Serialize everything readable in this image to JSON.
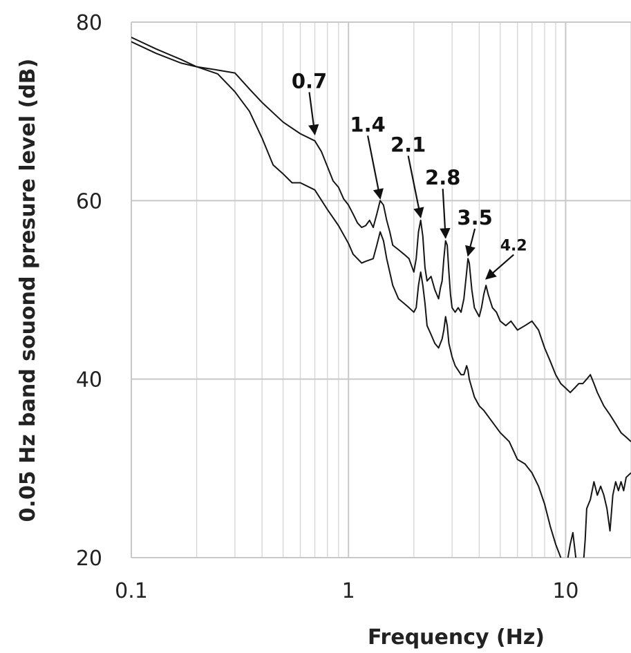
{
  "chart_data": {
    "type": "line",
    "xscale": "log",
    "xlabel": "Frequency (Hz)",
    "ylabel": "0.05 Hz band souond presure level (dB)",
    "xlim": [
      0.1,
      20
    ],
    "ylim": [
      20,
      80
    ],
    "x_ticks": [
      {
        "value": 0.1,
        "label": "0.1"
      },
      {
        "value": 1,
        "label": "1"
      },
      {
        "value": 10,
        "label": "10"
      }
    ],
    "y_ticks": [
      {
        "value": 20,
        "label": "20"
      },
      {
        "value": 40,
        "label": "40"
      },
      {
        "value": 60,
        "label": "60"
      },
      {
        "value": 80,
        "label": "80"
      }
    ],
    "grid": true,
    "legend": "none",
    "series": [
      {
        "points": [
          [
            0.1,
            78.3
          ],
          [
            0.13,
            77.0
          ],
          [
            0.17,
            75.8
          ],
          [
            0.2,
            75.0
          ],
          [
            0.24,
            74.7
          ],
          [
            0.3,
            74.3
          ],
          [
            0.35,
            72.5
          ],
          [
            0.4,
            71.0
          ],
          [
            0.5,
            68.8
          ],
          [
            0.6,
            67.5
          ],
          [
            0.7,
            66.7
          ],
          [
            0.75,
            65.5
          ],
          [
            0.8,
            63.8
          ],
          [
            0.85,
            62.2
          ],
          [
            0.9,
            61.5
          ],
          [
            0.95,
            60.2
          ],
          [
            1.0,
            59.5
          ],
          [
            1.05,
            58.5
          ],
          [
            1.1,
            57.5
          ],
          [
            1.15,
            57.0
          ],
          [
            1.2,
            57.2
          ],
          [
            1.25,
            57.8
          ],
          [
            1.3,
            57.0
          ],
          [
            1.35,
            58.5
          ],
          [
            1.4,
            60.0
          ],
          [
            1.45,
            59.5
          ],
          [
            1.5,
            57.8
          ],
          [
            1.55,
            56.5
          ],
          [
            1.6,
            55.0
          ],
          [
            1.7,
            54.5
          ],
          [
            1.8,
            54.0
          ],
          [
            1.9,
            53.5
          ],
          [
            2.0,
            52.0
          ],
          [
            2.05,
            53.5
          ],
          [
            2.1,
            56.5
          ],
          [
            2.15,
            57.8
          ],
          [
            2.2,
            56.0
          ],
          [
            2.25,
            52.5
          ],
          [
            2.3,
            51.0
          ],
          [
            2.4,
            51.5
          ],
          [
            2.5,
            50.0
          ],
          [
            2.6,
            49.0
          ],
          [
            2.65,
            50.2
          ],
          [
            2.7,
            51.0
          ],
          [
            2.75,
            53.5
          ],
          [
            2.8,
            55.5
          ],
          [
            2.85,
            55.0
          ],
          [
            2.9,
            52.0
          ],
          [
            2.95,
            49.5
          ],
          [
            3.0,
            48.0
          ],
          [
            3.1,
            47.5
          ],
          [
            3.2,
            48.0
          ],
          [
            3.3,
            47.5
          ],
          [
            3.4,
            49.0
          ],
          [
            3.5,
            52.0
          ],
          [
            3.55,
            53.5
          ],
          [
            3.6,
            53.0
          ],
          [
            3.7,
            50.0
          ],
          [
            3.8,
            48.0
          ],
          [
            3.9,
            47.5
          ],
          [
            4.0,
            47.0
          ],
          [
            4.1,
            48.0
          ],
          [
            4.2,
            49.5
          ],
          [
            4.3,
            50.5
          ],
          [
            4.4,
            49.5
          ],
          [
            4.6,
            48.0
          ],
          [
            4.8,
            47.5
          ],
          [
            5.0,
            46.5
          ],
          [
            5.3,
            46.0
          ],
          [
            5.6,
            46.5
          ],
          [
            6.0,
            45.5
          ],
          [
            6.5,
            46.0
          ],
          [
            7.0,
            46.5
          ],
          [
            7.5,
            45.5
          ],
          [
            8.0,
            43.5
          ],
          [
            8.5,
            42.0
          ],
          [
            9.0,
            40.5
          ],
          [
            9.5,
            39.5
          ],
          [
            10.0,
            39.0
          ],
          [
            10.5,
            38.5
          ],
          [
            11.0,
            39.0
          ],
          [
            11.5,
            39.5
          ],
          [
            12.0,
            39.5
          ],
          [
            12.5,
            40.0
          ],
          [
            13.0,
            40.5
          ],
          [
            13.5,
            39.5
          ],
          [
            14.0,
            38.5
          ],
          [
            15.0,
            37.0
          ],
          [
            16.0,
            36.0
          ],
          [
            17.0,
            35.0
          ],
          [
            18.0,
            34.0
          ],
          [
            19.0,
            33.5
          ],
          [
            20.0,
            33.0
          ]
        ]
      },
      {
        "points": [
          [
            0.1,
            77.8
          ],
          [
            0.13,
            76.5
          ],
          [
            0.17,
            75.4
          ],
          [
            0.2,
            75.0
          ],
          [
            0.25,
            74.2
          ],
          [
            0.3,
            72.2
          ],
          [
            0.35,
            70.0
          ],
          [
            0.4,
            67.0
          ],
          [
            0.45,
            64.0
          ],
          [
            0.5,
            63.0
          ],
          [
            0.55,
            62.0
          ],
          [
            0.6,
            62.0
          ],
          [
            0.7,
            61.2
          ],
          [
            0.8,
            59.0
          ],
          [
            0.9,
            57.2
          ],
          [
            1.0,
            55.2
          ],
          [
            1.05,
            54.0
          ],
          [
            1.1,
            53.5
          ],
          [
            1.15,
            53.0
          ],
          [
            1.2,
            53.2
          ],
          [
            1.3,
            53.5
          ],
          [
            1.35,
            55.0
          ],
          [
            1.4,
            56.5
          ],
          [
            1.45,
            55.5
          ],
          [
            1.5,
            53.5
          ],
          [
            1.6,
            50.5
          ],
          [
            1.7,
            49.0
          ],
          [
            1.8,
            48.5
          ],
          [
            1.9,
            48.0
          ],
          [
            2.0,
            47.5
          ],
          [
            2.05,
            48.0
          ],
          [
            2.1,
            50.5
          ],
          [
            2.15,
            52.0
          ],
          [
            2.2,
            50.5
          ],
          [
            2.25,
            48.5
          ],
          [
            2.3,
            46.0
          ],
          [
            2.4,
            45.0
          ],
          [
            2.5,
            44.0
          ],
          [
            2.6,
            43.5
          ],
          [
            2.7,
            44.5
          ],
          [
            2.75,
            45.5
          ],
          [
            2.8,
            47.0
          ],
          [
            2.85,
            46.0
          ],
          [
            2.9,
            44.0
          ],
          [
            3.0,
            42.5
          ],
          [
            3.1,
            41.5
          ],
          [
            3.2,
            41.0
          ],
          [
            3.3,
            40.5
          ],
          [
            3.4,
            40.5
          ],
          [
            3.5,
            41.5
          ],
          [
            3.55,
            41.0
          ],
          [
            3.6,
            40.0
          ],
          [
            3.7,
            39.0
          ],
          [
            3.8,
            38.0
          ],
          [
            4.0,
            37.0
          ],
          [
            4.2,
            36.5
          ],
          [
            4.5,
            35.5
          ],
          [
            5.0,
            34.0
          ],
          [
            5.5,
            33.0
          ],
          [
            6.0,
            31.0
          ],
          [
            6.5,
            30.5
          ],
          [
            7.0,
            29.5
          ],
          [
            7.5,
            28.0
          ],
          [
            8.0,
            26.0
          ],
          [
            8.5,
            23.5
          ],
          [
            9.0,
            21.5
          ],
          [
            9.5,
            20.0
          ],
          [
            10.0,
            18.5
          ],
          [
            10.5,
            21.5
          ],
          [
            10.8,
            22.8
          ],
          [
            11.2,
            19.5
          ],
          [
            11.5,
            17.0
          ],
          [
            12.0,
            18.5
          ],
          [
            12.3,
            22.0
          ],
          [
            12.5,
            25.5
          ],
          [
            13.0,
            26.5
          ],
          [
            13.5,
            28.5
          ],
          [
            14.0,
            27.0
          ],
          [
            14.5,
            28.0
          ],
          [
            15.0,
            27.0
          ],
          [
            15.5,
            25.5
          ],
          [
            16.0,
            23.0
          ],
          [
            16.5,
            27.0
          ],
          [
            17.0,
            28.5
          ],
          [
            17.5,
            27.5
          ],
          [
            18.0,
            28.5
          ],
          [
            18.5,
            27.5
          ],
          [
            19.0,
            29.0
          ],
          [
            20.0,
            29.5
          ]
        ]
      }
    ],
    "annotations": [
      {
        "label": "0.7",
        "x": 0.7,
        "y": 67.2
      },
      {
        "label": "1.4",
        "x": 1.4,
        "y": 60.0
      },
      {
        "label": "2.1",
        "x": 2.15,
        "y": 57.9
      },
      {
        "label": "2.8",
        "x": 2.8,
        "y": 55.6
      },
      {
        "label": "3.5",
        "x": 3.55,
        "y": 53.6
      },
      {
        "label": "4.2",
        "x": 4.3,
        "y": 51.0
      }
    ]
  }
}
